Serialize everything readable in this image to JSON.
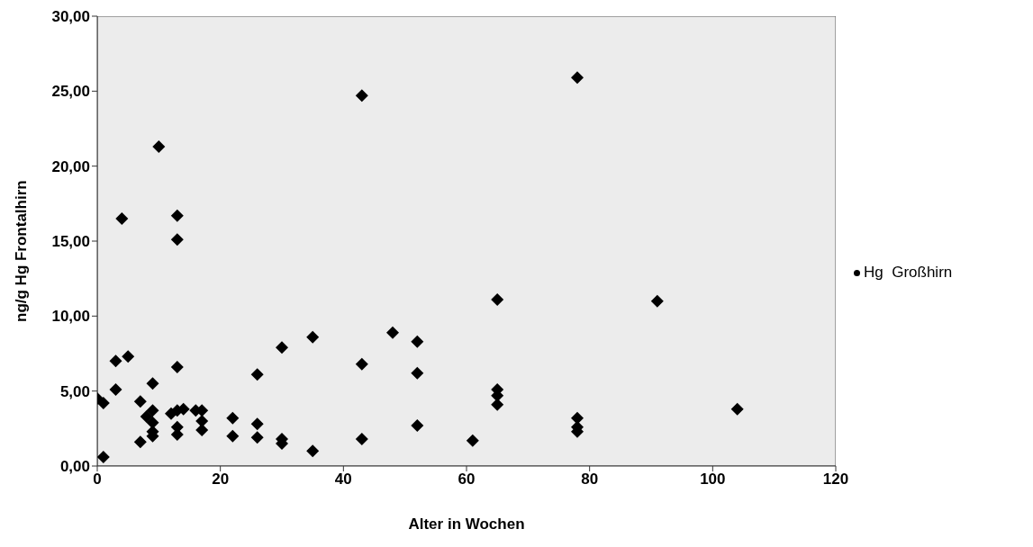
{
  "chart_data": {
    "type": "scatter",
    "xlabel": "Alter in Wochen",
    "ylabel": "ng/g Hg Frontalhirn",
    "series": [
      {
        "name": "Hg  Großhirn",
        "color": "#000000",
        "x": [
          0,
          1,
          1,
          3,
          3,
          5,
          4,
          7,
          7,
          8,
          9,
          9,
          9,
          9,
          9,
          10,
          12,
          13,
          13,
          13,
          13,
          13,
          13,
          14,
          16,
          17,
          17,
          17,
          22,
          22,
          26,
          26,
          26,
          30,
          30,
          30,
          35,
          35,
          43,
          43,
          43,
          48,
          52,
          52,
          52,
          61,
          65,
          65,
          65,
          65,
          78,
          78,
          78,
          78,
          91,
          104
        ],
        "values": [
          4.5,
          4.2,
          0.6,
          5.1,
          7.0,
          7.3,
          16.5,
          4.3,
          1.6,
          3.3,
          3.7,
          2.9,
          2.3,
          2.0,
          5.5,
          21.3,
          3.5,
          3.7,
          2.6,
          2.1,
          6.6,
          16.7,
          15.1,
          3.8,
          3.7,
          3.7,
          3.0,
          2.4,
          3.2,
          2.0,
          2.8,
          1.9,
          6.1,
          7.9,
          1.8,
          1.5,
          8.6,
          1.0,
          24.7,
          6.8,
          1.8,
          8.9,
          8.3,
          6.2,
          2.7,
          1.7,
          11.1,
          5.1,
          4.7,
          4.1,
          25.9,
          3.2,
          2.6,
          2.3,
          11.0,
          3.8
        ]
      }
    ],
    "xlim": [
      0,
      120
    ],
    "xticks": [
      0,
      20,
      40,
      60,
      80,
      100,
      120
    ],
    "ylim": [
      0,
      30
    ],
    "yticks": [
      {
        "value": 0,
        "label": "0,00"
      },
      {
        "value": 5,
        "label": "5,00"
      },
      {
        "value": 10,
        "label": "10,00"
      },
      {
        "value": 15,
        "label": "15,00"
      },
      {
        "value": 20,
        "label": "20,00"
      },
      {
        "value": 25,
        "label": "25,00"
      },
      {
        "value": 30,
        "label": "30,00"
      }
    ],
    "marker": "diamond",
    "legend": "right",
    "grid": false
  }
}
